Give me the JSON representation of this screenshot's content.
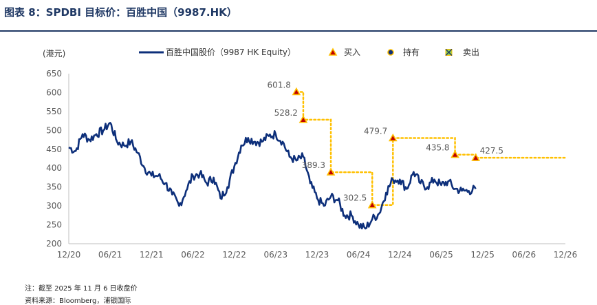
{
  "figure": {
    "title": "图表 8：SPDBI 目标价：百胜中国（9987.HK）",
    "note": "注：截至 2025 年 11 月 6 日收盘价",
    "source": "资料来源：Bloomberg，浦银国际"
  },
  "chart_data": {
    "type": "line",
    "ylabel": "(港元)",
    "xlabel": "",
    "ylim": [
      200,
      650
    ],
    "yticks": [
      200,
      250,
      300,
      350,
      400,
      450,
      500,
      550,
      600,
      650
    ],
    "xticks": [
      "12/20",
      "06/21",
      "12/21",
      "06/22",
      "12/22",
      "06/23",
      "12/23",
      "06/24",
      "12/24",
      "06/25",
      "12/25",
      "06/26",
      "12/26"
    ],
    "grid": false,
    "legend_position": "top",
    "legend": [
      "百胜中国股价（9987 HK Equity）",
      "买入",
      "持有",
      "卖出"
    ],
    "colors": {
      "price": "#0d2f7a",
      "target": "#ffc000",
      "buy_marker": "#c00000",
      "axis": "#bfbfbf",
      "text": "#595959"
    },
    "series": [
      {
        "name": "百胜中国股价（9987 HK Equity）",
        "x": [
          "2020-12",
          "2021-01",
          "2021-02",
          "2021-03",
          "2021-04",
          "2021-05",
          "2021-06",
          "2021-07",
          "2021-08",
          "2021-09",
          "2021-10",
          "2021-11",
          "2021-12",
          "2022-01",
          "2022-02",
          "2022-03",
          "2022-04",
          "2022-05",
          "2022-06",
          "2022-07",
          "2022-08",
          "2022-09",
          "2022-10",
          "2022-11",
          "2022-12",
          "2023-01",
          "2023-02",
          "2023-03",
          "2023-04",
          "2023-05",
          "2023-06",
          "2023-07",
          "2023-08",
          "2023-09",
          "2023-10",
          "2023-11",
          "2023-12",
          "2024-01",
          "2024-02",
          "2024-03",
          "2024-04",
          "2024-05",
          "2024-06",
          "2024-07",
          "2024-08",
          "2024-09",
          "2024-10",
          "2024-11",
          "2024-12",
          "2025-01",
          "2025-02",
          "2025-03",
          "2025-04",
          "2025-05",
          "2025-06",
          "2025-07",
          "2025-08",
          "2025-09",
          "2025-10",
          "2025-11"
        ],
        "values": [
          455,
          445,
          490,
          475,
          490,
          500,
          520,
          470,
          460,
          470,
          440,
          400,
          380,
          380,
          360,
          330,
          300,
          340,
          380,
          385,
          360,
          375,
          320,
          350,
          405,
          460,
          480,
          470,
          470,
          485,
          490,
          470,
          430,
          420,
          430,
          360,
          320,
          300,
          325,
          315,
          275,
          275,
          250,
          240,
          265,
          280,
          335,
          370,
          370,
          345,
          390,
          360,
          350,
          370,
          355,
          365,
          345,
          340,
          340,
          345
        ]
      }
    ],
    "ratings": [
      {
        "date": "2023-09",
        "rating": "买入",
        "target": 601.8,
        "label": "601.8"
      },
      {
        "date": "2023-10",
        "rating": "买入",
        "target": 528.2,
        "label": "528.2"
      },
      {
        "date": "2024-02",
        "rating": "买入",
        "target": 389.3,
        "label": "389.3"
      },
      {
        "date": "2024-08",
        "rating": "买入",
        "target": 302.5,
        "label": "302.5"
      },
      {
        "date": "2024-11",
        "rating": "买入",
        "target": 479.7,
        "label": "479.7"
      },
      {
        "date": "2025-08",
        "rating": "买入",
        "target": 435.8,
        "label": "435.8"
      },
      {
        "date": "2025-11",
        "rating": "买入",
        "target": 427.5,
        "label": "427.5"
      }
    ],
    "target_line_end": "2026-12"
  }
}
